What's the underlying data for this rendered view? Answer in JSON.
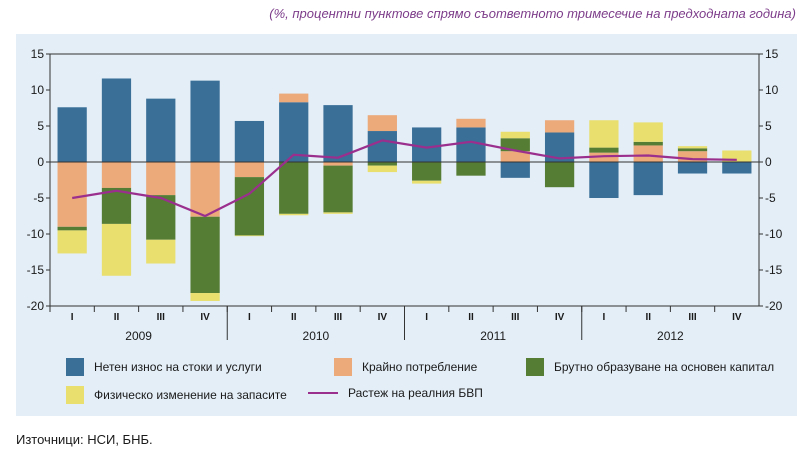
{
  "subtitle": "(%, процентни пунктове спрямо съответното тримесечие на предходната година)",
  "source": "Източници: НСИ, БНБ.",
  "colors": {
    "panel_bg": "#e3eef7",
    "net_exports": "#3a6f98",
    "consumption": "#eca97a",
    "investment": "#567d34",
    "inventories": "#e9df6e",
    "gdp": "#9b2f8e"
  },
  "chart_data": {
    "type": "bar",
    "stacked": true,
    "ylim": [
      -20,
      15
    ],
    "yticks": [
      -20,
      -15,
      -10,
      -5,
      0,
      5,
      10,
      15
    ],
    "ytick_labels": [
      "-20",
      "-15",
      "-10",
      "-5",
      "0",
      "5",
      "10",
      "15"
    ],
    "grid": false,
    "quarters": [
      "I",
      "II",
      "III",
      "IV",
      "I",
      "II",
      "III",
      "IV",
      "I",
      "II",
      "III",
      "IV",
      "I",
      "II",
      "III",
      "IV"
    ],
    "years": [
      "2009",
      "2010",
      "2011",
      "2012"
    ],
    "series": [
      {
        "name": "Нетен износ на стоки и услуги",
        "color_key": "net_exports",
        "values": [
          7.6,
          11.6,
          8.8,
          11.3,
          5.7,
          8.3,
          7.9,
          4.3,
          4.8,
          4.8,
          -2.2,
          4.1,
          -5.0,
          -4.6,
          -1.6,
          -1.6
        ]
      },
      {
        "name": "Крайно потребление",
        "color_key": "consumption",
        "values": [
          -9.0,
          -3.6,
          -4.6,
          -7.6,
          -2.1,
          1.2,
          -0.5,
          2.2,
          0,
          1.2,
          1.5,
          1.7,
          1.3,
          2.3,
          1.5,
          0
        ]
      },
      {
        "name": "Брутно образуване на основен капитал",
        "color_key": "investment",
        "values": [
          -0.5,
          -5.0,
          -6.2,
          -10.6,
          -8.1,
          -7.2,
          -6.5,
          -0.5,
          -2.6,
          -1.9,
          1.8,
          -3.5,
          0.7,
          0.5,
          0.4,
          0
        ]
      },
      {
        "name": "Физическо изменение на запасите",
        "color_key": "inventories",
        "values": [
          -3.2,
          -7.2,
          -3.3,
          -1.1,
          -0.1,
          -0.2,
          -0.2,
          -0.9,
          -0.4,
          0,
          0.9,
          0,
          3.8,
          2.7,
          0.3,
          1.6
        ]
      }
    ],
    "line": {
      "name": "Растеж на реалния БВП",
      "color_key": "gdp",
      "values": [
        -5.0,
        -4.0,
        -5.0,
        -7.5,
        -4.4,
        1.0,
        0.6,
        3.0,
        2.0,
        2.8,
        1.6,
        0.5,
        0.8,
        0.9,
        0.4,
        0.3
      ]
    },
    "legend": [
      {
        "label": "Нетен износ на стоки и услуги",
        "kind": "box",
        "color_key": "net_exports"
      },
      {
        "label": "Крайно потребление",
        "kind": "box",
        "color_key": "consumption"
      },
      {
        "label": "Брутно образуване на основен капитал",
        "kind": "box",
        "color_key": "investment"
      },
      {
        "label": "Физическо изменение на запасите",
        "kind": "box",
        "color_key": "inventories"
      },
      {
        "label": "Растеж на реалния БВП",
        "kind": "line",
        "color_key": "gdp"
      }
    ]
  }
}
